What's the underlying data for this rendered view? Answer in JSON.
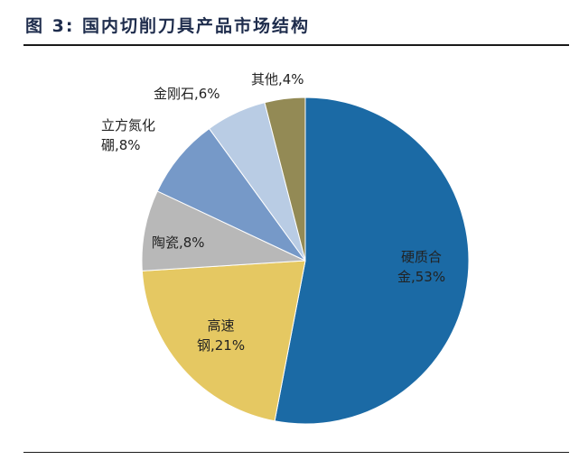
{
  "header": {
    "title": "图 3:  国内切削刀具产品市场结构"
  },
  "chart_data": {
    "type": "pie",
    "title": "国内切削刀具产品市场结构",
    "figure_label": "图 3",
    "categories": [
      "硬质合金",
      "高速钢",
      "陶瓷",
      "立方氮化硼",
      "金刚石",
      "其他"
    ],
    "values": [
      53,
      21,
      8,
      8,
      6,
      4
    ],
    "unit": "%",
    "colors": [
      "#1b6aa5",
      "#e5c862",
      "#b8b8b8",
      "#7699c8",
      "#b9cce4",
      "#938a55"
    ],
    "start_angle": "12 o'clock, clockwise",
    "legend": "none (data labels on slices)"
  },
  "labels": {
    "carbide_line1": "硬质合",
    "carbide_line2": "金,53%",
    "hss_line1": "高速",
    "hss_line2": "钢,21%",
    "ceramic": "陶瓷,8%",
    "cbn_line1": "立方氮化",
    "cbn_line2": "硼,8%",
    "diamond": "金刚石,6%",
    "other": "其他,4%"
  }
}
